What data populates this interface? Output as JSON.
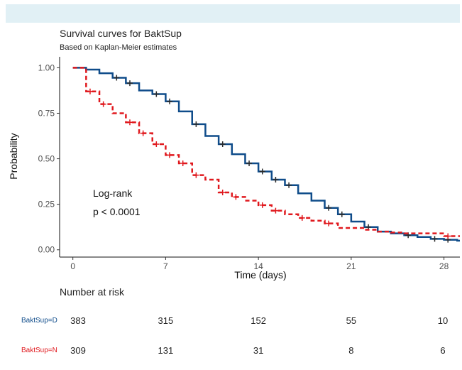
{
  "chart_data": {
    "type": "line",
    "title": "Survival curves for BaktSup",
    "subtitle": "Based on Kaplan-Meier estimates",
    "xlabel": "Time (days)",
    "ylabel": "Probability",
    "xlim": [
      -1,
      29.2
    ],
    "ylim": [
      -0.04,
      1.06
    ],
    "x_ticks": [
      0,
      7,
      14,
      21,
      28
    ],
    "y_ticks": [
      0.0,
      0.25,
      0.5,
      0.75,
      1.0
    ],
    "y_tick_labels": [
      "0.00",
      "0.25",
      "0.50",
      "0.75",
      "1.00"
    ],
    "annotation": [
      "Log-rank",
      "p < 0.0001"
    ],
    "series": [
      {
        "name": "BaktSup=D",
        "color": "#0f4c8a",
        "style": "solid",
        "steps": [
          [
            0,
            1.0
          ],
          [
            1,
            0.99
          ],
          [
            2,
            0.97
          ],
          [
            3,
            0.945
          ],
          [
            4,
            0.915
          ],
          [
            5,
            0.875
          ],
          [
            6,
            0.855
          ],
          [
            7,
            0.815
          ],
          [
            8,
            0.76
          ],
          [
            9,
            0.69
          ],
          [
            10,
            0.625
          ],
          [
            11,
            0.58
          ],
          [
            12,
            0.525
          ],
          [
            13,
            0.475
          ],
          [
            14,
            0.43
          ],
          [
            15,
            0.385
          ],
          [
            16,
            0.355
          ],
          [
            17,
            0.31
          ],
          [
            18,
            0.27
          ],
          [
            19,
            0.23
          ],
          [
            20,
            0.195
          ],
          [
            21,
            0.155
          ],
          [
            22,
            0.125
          ],
          [
            23,
            0.1
          ],
          [
            24,
            0.09
          ],
          [
            25,
            0.08
          ],
          [
            26,
            0.07
          ],
          [
            27,
            0.06
          ],
          [
            28,
            0.055
          ],
          [
            29,
            0.05
          ]
        ],
        "censor_marks": [
          [
            3,
            0.945
          ],
          [
            4,
            0.915
          ],
          [
            6,
            0.855
          ],
          [
            7,
            0.815
          ],
          [
            9,
            0.69
          ],
          [
            11,
            0.58
          ],
          [
            13,
            0.475
          ],
          [
            14,
            0.43
          ],
          [
            15,
            0.385
          ],
          [
            16,
            0.355
          ],
          [
            19,
            0.23
          ],
          [
            20,
            0.195
          ],
          [
            22,
            0.125
          ],
          [
            25,
            0.08
          ],
          [
            27,
            0.06
          ],
          [
            28,
            0.055
          ]
        ]
      },
      {
        "name": "BaktSup=N",
        "color": "#e0191e",
        "style": "dashed",
        "steps": [
          [
            0,
            1.0
          ],
          [
            1,
            0.87
          ],
          [
            2,
            0.8
          ],
          [
            3,
            0.75
          ],
          [
            4,
            0.7
          ],
          [
            5,
            0.64
          ],
          [
            6,
            0.58
          ],
          [
            7,
            0.52
          ],
          [
            8,
            0.475
          ],
          [
            9,
            0.41
          ],
          [
            10,
            0.385
          ],
          [
            11,
            0.315
          ],
          [
            12,
            0.29
          ],
          [
            13,
            0.27
          ],
          [
            14,
            0.245
          ],
          [
            15,
            0.215
          ],
          [
            16,
            0.195
          ],
          [
            17,
            0.175
          ],
          [
            18,
            0.16
          ],
          [
            19,
            0.145
          ],
          [
            20,
            0.12
          ],
          [
            21,
            0.12
          ],
          [
            22,
            0.11
          ],
          [
            23,
            0.1
          ],
          [
            24,
            0.095
          ],
          [
            25,
            0.09
          ],
          [
            26,
            0.09
          ],
          [
            27,
            0.09
          ],
          [
            28,
            0.075
          ],
          [
            29,
            0.075
          ]
        ],
        "censor_marks": [
          [
            1,
            0.87
          ],
          [
            2,
            0.8
          ],
          [
            4,
            0.7
          ],
          [
            5,
            0.64
          ],
          [
            6,
            0.58
          ],
          [
            7,
            0.52
          ],
          [
            8,
            0.475
          ],
          [
            9,
            0.41
          ],
          [
            11,
            0.315
          ],
          [
            12,
            0.29
          ],
          [
            14,
            0.245
          ],
          [
            15,
            0.215
          ],
          [
            17,
            0.175
          ],
          [
            19,
            0.145
          ],
          [
            28,
            0.075
          ]
        ]
      }
    ]
  },
  "risk_table": {
    "title": "Number at risk",
    "times": [
      0,
      7,
      14,
      21,
      28
    ],
    "rows": [
      {
        "label": "BaktSup=D",
        "color": "#0f4c8a",
        "values": [
          "383",
          "315",
          "152",
          "55",
          "10"
        ]
      },
      {
        "label": "BaktSup=N",
        "color": "#e0191e",
        "values": [
          "309",
          "131",
          "31",
          "8",
          "6"
        ]
      }
    ]
  },
  "colors": {
    "banner": "#e1f0f5"
  }
}
